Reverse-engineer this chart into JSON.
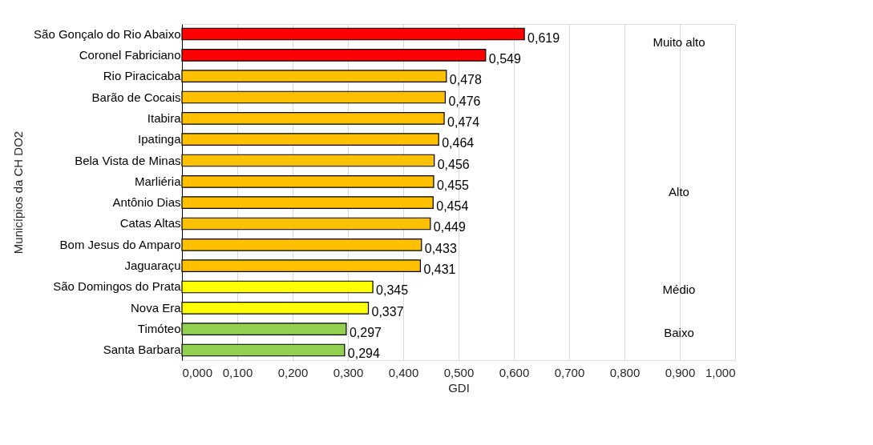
{
  "chart_data": {
    "type": "bar",
    "orientation": "horizontal",
    "xlabel": "GDI",
    "ylabel": "Municípios da CH DO2",
    "categories": [
      "São Gonçalo do Rio Abaixo",
      "Coronel Fabriciano",
      "Rio Piracicaba",
      "Barão de Cocais",
      "Itabira",
      "Ipatinga",
      "Bela Vista de Minas",
      "Marliéria",
      "Antônio Dias",
      "Catas Altas",
      "Bom Jesus do Amparo",
      "Jaguaraçu",
      "São Domingos do Prata",
      "Nova Era",
      "Timóteo",
      "Santa Barbara"
    ],
    "values": [
      0.619,
      0.549,
      0.478,
      0.476,
      0.474,
      0.464,
      0.456,
      0.455,
      0.454,
      0.449,
      0.433,
      0.431,
      0.345,
      0.337,
      0.297,
      0.294
    ],
    "colors": [
      "#ff0000",
      "#ff0000",
      "#ffc000",
      "#ffc000",
      "#ffc000",
      "#ffc000",
      "#ffc000",
      "#ffc000",
      "#ffc000",
      "#ffc000",
      "#ffc000",
      "#ffc000",
      "#ffff00",
      "#ffff00",
      "#92d050",
      "#92d050"
    ],
    "value_labels": [
      "0,619",
      "0,549",
      "0,478",
      "0,476",
      "0,474",
      "0,464",
      "0,456",
      "0,455",
      "0,454",
      "0,449",
      "0,433",
      "0,431",
      "0,345",
      "0,337",
      "0,297",
      "0,294"
    ],
    "xlim": [
      0,
      1
    ],
    "xticks": [
      {
        "value": 0,
        "label": "0,000"
      },
      {
        "value": 0.1,
        "label": "0,100"
      },
      {
        "value": 0.2,
        "label": "0,200"
      },
      {
        "value": 0.3,
        "label": "0,300"
      },
      {
        "value": 0.4,
        "label": "0,400"
      },
      {
        "value": 0.5,
        "label": "0,500"
      },
      {
        "value": 0.6,
        "label": "0,600"
      },
      {
        "value": 0.7,
        "label": "0,700"
      },
      {
        "value": 0.8,
        "label": "0,800"
      },
      {
        "value": 0.9,
        "label": "0,900"
      },
      {
        "value": 1,
        "label": "1,000"
      }
    ],
    "grid": "x",
    "annotations": [
      "Muito alto",
      "Alto",
      "Médio",
      "Baixo"
    ]
  }
}
